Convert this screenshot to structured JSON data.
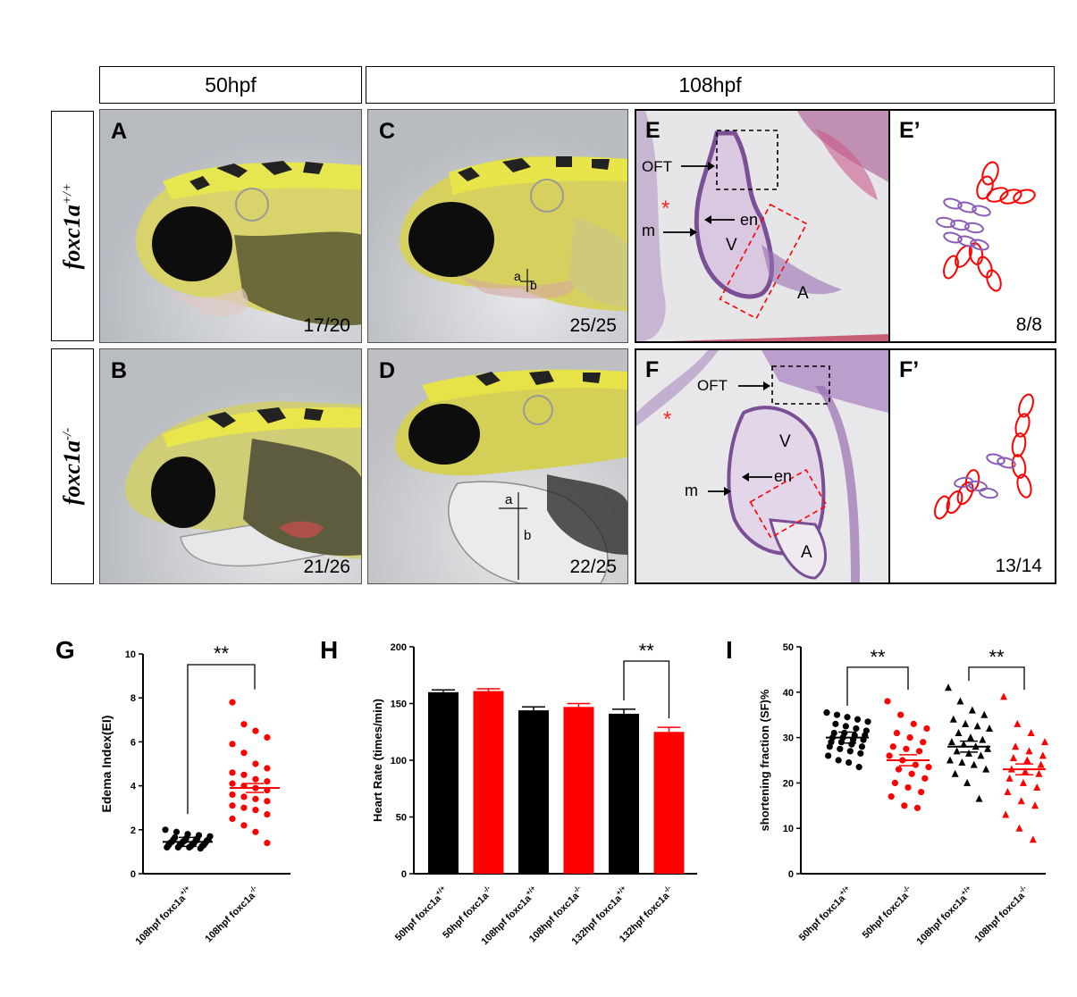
{
  "headers": {
    "h50": "50hpf",
    "h108": "108hpf"
  },
  "rows": {
    "top": {
      "gene": "foxc1a",
      "sup": "+/+"
    },
    "bottom": {
      "gene": "foxc1a",
      "sup": "-/-"
    }
  },
  "panels": {
    "A": {
      "letter": "A",
      "fraction": "17/20"
    },
    "B": {
      "letter": "B",
      "fraction": "21/26"
    },
    "C": {
      "letter": "C",
      "fraction": "25/25",
      "mark_a": "a",
      "mark_b": "b"
    },
    "D": {
      "letter": "D",
      "fraction": "22/25",
      "mark_a": "a",
      "mark_b": "b"
    },
    "E": {
      "letter": "E",
      "oft": "OFT",
      "m": "m",
      "en": "en",
      "v": "V",
      "a": "A",
      "star": "*"
    },
    "E2": {
      "letter": "E’",
      "fraction": "8/8"
    },
    "F": {
      "letter": "F",
      "oft": "OFT",
      "m": "m",
      "en": "en",
      "v": "V",
      "a": "A",
      "star": "*"
    },
    "F2": {
      "letter": "F’",
      "fraction": "13/14"
    }
  },
  "colors": {
    "wt": "#000000",
    "mut": "#ff0000",
    "purple": "#8a5bb5",
    "he_bg": "#d9c8e0"
  },
  "chart_data": [
    {
      "panel": "G",
      "type": "scatter",
      "ylabel": "Edema Index(EI)",
      "ylim": [
        0,
        10
      ],
      "yticks": [
        0,
        2,
        4,
        6,
        8,
        10
      ],
      "categories": [
        "108hpf foxc1a+/+",
        "108hpf foxc1a-/-"
      ],
      "series": [
        {
          "color": "#000000",
          "marker": "circle",
          "mean": 1.45,
          "values": [
            2.0,
            1.9,
            1.8,
            1.75,
            1.7,
            1.65,
            1.6,
            1.6,
            1.55,
            1.55,
            1.5,
            1.5,
            1.5,
            1.45,
            1.45,
            1.4,
            1.4,
            1.4,
            1.35,
            1.35,
            1.3,
            1.3,
            1.3,
            1.25,
            1.25,
            1.2,
            1.2,
            1.2,
            1.15
          ]
        },
        {
          "color": "#ff0000",
          "marker": "circle",
          "mean": 3.9,
          "values": [
            7.8,
            6.8,
            6.5,
            6.2,
            5.9,
            5.5,
            5.0,
            4.8,
            4.6,
            4.5,
            4.3,
            4.2,
            4.1,
            4.0,
            3.9,
            3.8,
            3.6,
            3.5,
            3.4,
            3.3,
            3.1,
            3.0,
            2.9,
            2.7,
            2.5,
            2.2,
            1.9,
            1.4
          ]
        }
      ],
      "significance": "**"
    },
    {
      "panel": "H",
      "type": "bar",
      "ylabel": "Heart Rate (times/min)",
      "ylim": [
        0,
        200
      ],
      "yticks": [
        0,
        50,
        100,
        150,
        200
      ],
      "categories": [
        "50hpf foxc1a+/+",
        "50hpf foxc1a-/-",
        "108hpf foxc1a+/+",
        "108hpf foxc1a-/-",
        "132hpf foxc1a+/+",
        "132hpf foxc1a-/-"
      ],
      "values": [
        160,
        161,
        144,
        147,
        141,
        125
      ],
      "errors": [
        2,
        2,
        3,
        3,
        4,
        4
      ],
      "colors": [
        "#000000",
        "#ff0000",
        "#000000",
        "#ff0000",
        "#000000",
        "#ff0000"
      ],
      "significance": "**"
    },
    {
      "panel": "I",
      "type": "scatter",
      "ylabel": "shortening fraction (SF)%",
      "ylim": [
        0,
        50
      ],
      "yticks": [
        0,
        10,
        20,
        30,
        40,
        50
      ],
      "categories": [
        "50hpf foxc1a+/+",
        "50hpf foxc1a-/-",
        "108hpf foxc1a+/+",
        "108hpf foxc1a-/-"
      ],
      "series": [
        {
          "color": "#000000",
          "marker": "circle",
          "mean": 30,
          "values": [
            35.5,
            35,
            34.5,
            34,
            33.5,
            33,
            32.5,
            32,
            31.5,
            31,
            31,
            30.5,
            30.5,
            30,
            30,
            29.5,
            29.5,
            29,
            29,
            28.5,
            28,
            28,
            27.5,
            27,
            26.5,
            26,
            25,
            24.5,
            23.5
          ]
        },
        {
          "color": "#ff0000",
          "marker": "circle",
          "mean": 25,
          "values": [
            38,
            35,
            33,
            32,
            31,
            30,
            29,
            28,
            27.5,
            27,
            26,
            25,
            24,
            23.5,
            23,
            22,
            21,
            20,
            19,
            18,
            17,
            15,
            14.5
          ]
        },
        {
          "color": "#000000",
          "marker": "triangle",
          "mean": 28,
          "values": [
            41,
            38,
            36,
            35,
            34,
            33,
            32.5,
            32,
            31,
            30,
            29.5,
            29,
            28.5,
            28,
            27.5,
            27,
            26.5,
            26,
            25,
            24.5,
            24,
            23,
            22,
            20,
            16.5
          ]
        },
        {
          "color": "#ff0000",
          "marker": "triangle",
          "mean": 23,
          "values": [
            39,
            33,
            31,
            29,
            28,
            27,
            26,
            25.5,
            25,
            24,
            23,
            22.5,
            22,
            21,
            20,
            19,
            18,
            16,
            15,
            13,
            10,
            7.5
          ]
        }
      ],
      "significance": [
        "**",
        "**"
      ]
    }
  ],
  "graph_letters": {
    "G": "G",
    "H": "H",
    "I": "I"
  }
}
